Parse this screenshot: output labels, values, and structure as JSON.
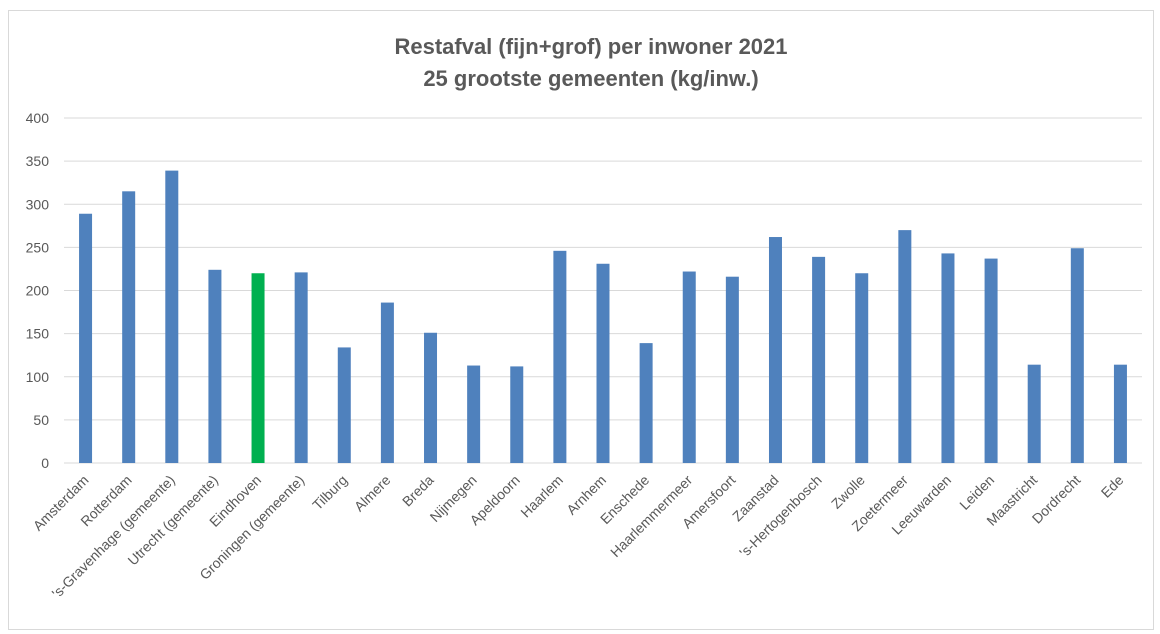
{
  "chart_data": {
    "type": "bar",
    "title": "Restafval (fijn+grof)  per inwoner 2021",
    "subtitle": "25 grootste gemeenten (kg/inw.)",
    "xlabel": "",
    "ylabel": "",
    "ylim": [
      0,
      400
    ],
    "yticks": [
      0,
      50,
      100,
      150,
      200,
      250,
      300,
      350,
      400
    ],
    "grid": true,
    "legend": "none",
    "categories": [
      "Amsterdam",
      "Rotterdam",
      "'s-Gravenhage (gemeente)",
      "Utrecht (gemeente)",
      "Eindhoven",
      "Groningen (gemeente)",
      "Tilburg",
      "Almere",
      "Breda",
      "Nijmegen",
      "Apeldoorn",
      "Haarlem",
      "Arnhem",
      "Enschede",
      "Haarlemmermeer",
      "Amersfoort",
      "Zaanstad",
      "'s-Hertogenbosch",
      "Zwolle",
      "Zoetermeer",
      "Leeuwarden",
      "Leiden",
      "Maastricht",
      "Dordrecht",
      "Ede"
    ],
    "values": [
      289,
      315,
      339,
      224,
      220,
      221,
      134,
      186,
      151,
      113,
      112,
      246,
      231,
      139,
      222,
      216,
      262,
      239,
      220,
      270,
      243,
      237,
      114,
      249,
      114
    ],
    "colors": {
      "default": "#4f81bd",
      "highlight": "#00b050",
      "grid": "#d9d9d9",
      "text": "#595959"
    },
    "highlight_category": "Eindhoven"
  }
}
